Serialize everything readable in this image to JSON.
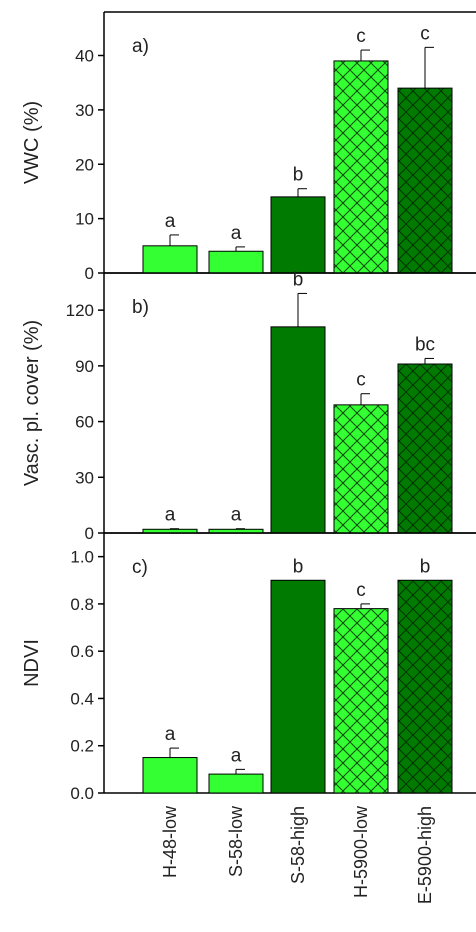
{
  "chart_data": [
    {
      "type": "bar",
      "panel_label": "a)",
      "ylabel": "VWC (%)",
      "ylim": [
        0,
        48
      ],
      "yticks": [
        "0",
        "10",
        "20",
        "30",
        "40"
      ],
      "yticks_values": [
        0,
        10,
        20,
        30,
        40
      ],
      "categories": [
        "H-48-low",
        "S-58-low",
        "S-58-high",
        "H-5900-low",
        "E-5900-high"
      ],
      "values": [
        5,
        4,
        14,
        39,
        34
      ],
      "errors": [
        2,
        0.8,
        1.5,
        2,
        7.5
      ],
      "letters": [
        "a",
        "a",
        "b",
        "c",
        "c"
      ]
    },
    {
      "type": "bar",
      "panel_label": "b)",
      "ylabel": "Vasc. pl. cover (%)",
      "ylim": [
        0,
        140
      ],
      "yticks": [
        "0",
        "30",
        "60",
        "90",
        "120"
      ],
      "yticks_values": [
        0,
        30,
        60,
        90,
        120
      ],
      "categories": [
        "H-48-low",
        "S-58-low",
        "S-58-high",
        "H-5900-low",
        "E-5900-high"
      ],
      "values": [
        2,
        2,
        111,
        69,
        91
      ],
      "errors": [
        0.3,
        0.3,
        18,
        6,
        3
      ],
      "letters": [
        "a",
        "a",
        "b",
        "c",
        "bc"
      ]
    },
    {
      "type": "bar",
      "panel_label": "c)",
      "ylabel": "NDVI",
      "ylim": [
        0,
        1.1
      ],
      "yticks": [
        "0.0",
        "0.2",
        "0.4",
        "0.6",
        "0.8",
        "1.0"
      ],
      "yticks_values": [
        0,
        0.2,
        0.4,
        0.6,
        0.8,
        1.0
      ],
      "categories": [
        "H-48-low",
        "S-58-low",
        "S-58-high",
        "H-5900-low",
        "E-5900-high"
      ],
      "values": [
        0.15,
        0.08,
        0.9,
        0.78,
        0.9
      ],
      "errors": [
        0.04,
        0.02,
        0,
        0.02,
        0
      ],
      "letters": [
        "a",
        "a",
        "b",
        "c",
        "b"
      ]
    }
  ],
  "x_categories": [
    "H-48-low",
    "S-58-low",
    "S-58-high",
    "H-5900-low",
    "E-5900-high"
  ],
  "bar_styles": {
    "light_color": "#33ff33",
    "dark_color": "#007a00",
    "hatched": [
      false,
      false,
      false,
      true,
      true
    ],
    "dark": [
      false,
      false,
      true,
      false,
      true
    ]
  }
}
